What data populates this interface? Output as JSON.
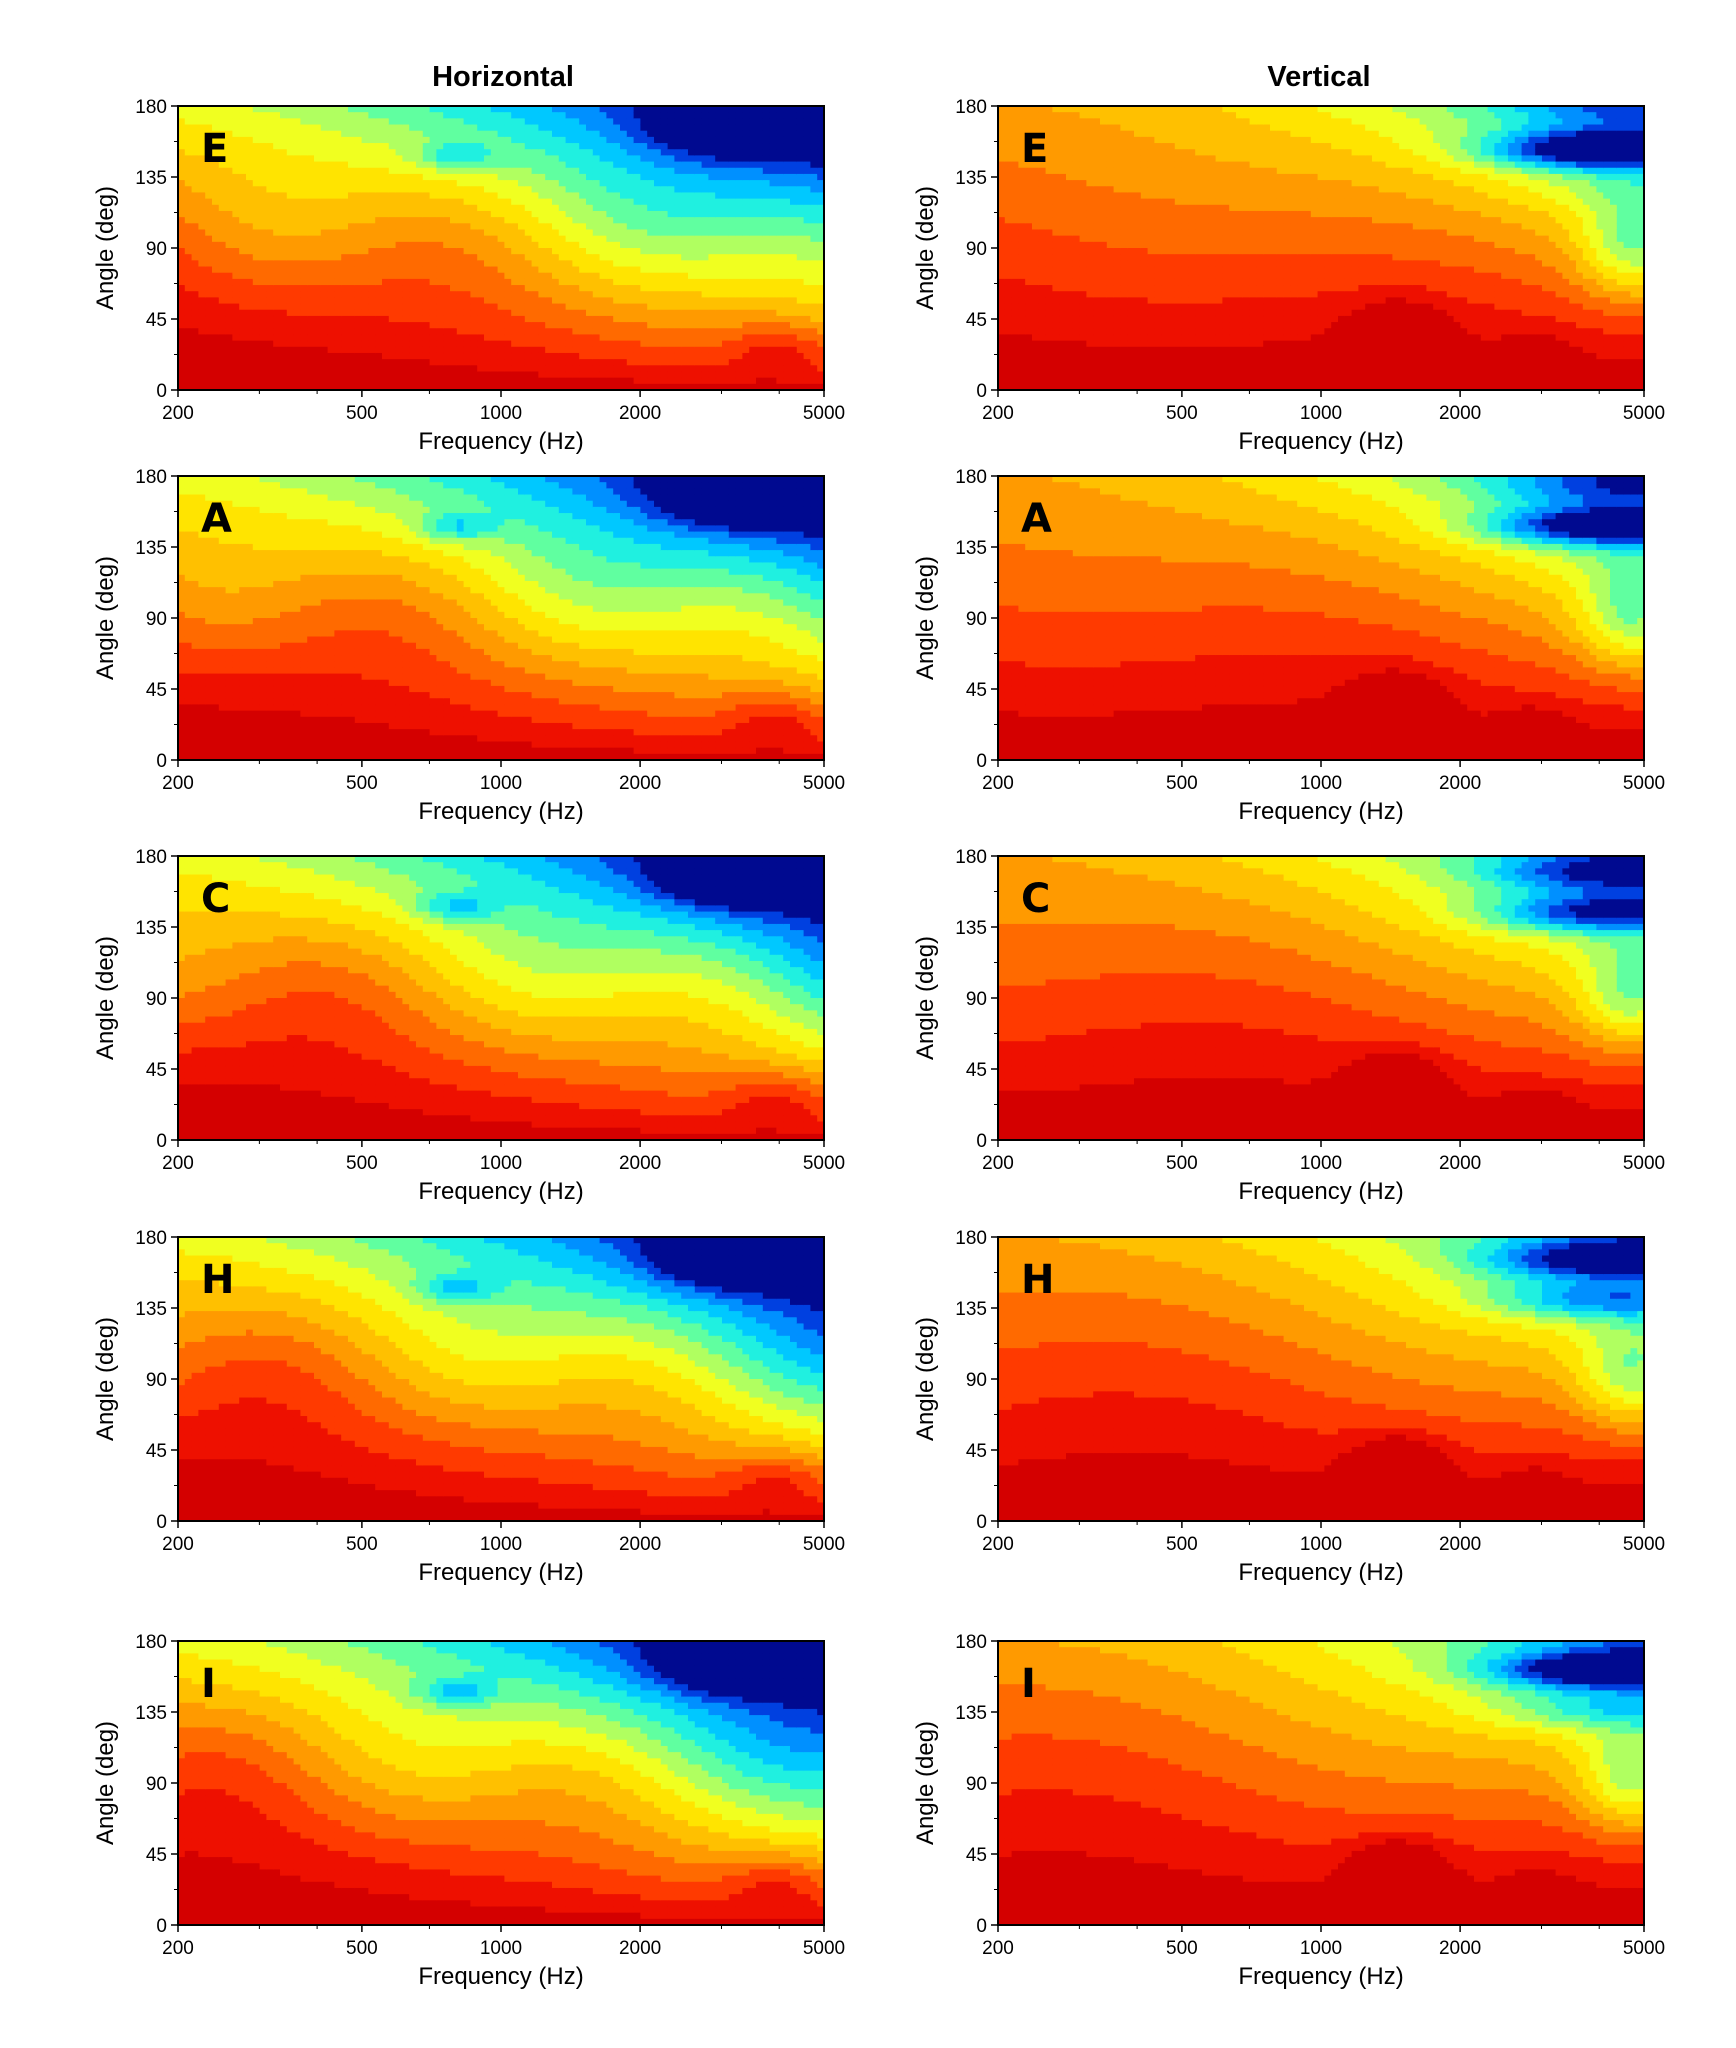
{
  "figure": {
    "column_titles": [
      "Horizontal",
      "Vertical"
    ]
  },
  "colorscale": [
    "#d40000",
    "#ee1000",
    "#ff3a00",
    "#ff6a00",
    "#ff9a00",
    "#ffc000",
    "#ffe400",
    "#f0ff20",
    "#b0ff60",
    "#60ffa0",
    "#20f0e0",
    "#00c8ff",
    "#0090ff",
    "#0040e0",
    "#000a90"
  ],
  "chart_data": [
    {
      "type": "heatmap",
      "panel_label": "E",
      "column": "Horizontal",
      "xlabel": "Frequency (Hz)",
      "ylabel": "Angle (deg)",
      "x_ticks": [
        200,
        500,
        1000,
        2000,
        5000
      ],
      "y_ticks": [
        0,
        45,
        90,
        135,
        180
      ],
      "x_scale": "log",
      "xlim": [
        200,
        5000
      ],
      "ylim": [
        0,
        180
      ]
    },
    {
      "type": "heatmap",
      "panel_label": "E",
      "column": "Vertical",
      "xlabel": "Frequency (Hz)",
      "ylabel": "Angle (deg)",
      "x_ticks": [
        200,
        500,
        1000,
        2000,
        5000
      ],
      "y_ticks": [
        0,
        45,
        90,
        135,
        180
      ],
      "x_scale": "log",
      "xlim": [
        200,
        5000
      ],
      "ylim": [
        0,
        180
      ]
    },
    {
      "type": "heatmap",
      "panel_label": "A",
      "column": "Horizontal",
      "xlabel": "Frequency (Hz)",
      "ylabel": "Angle (deg)",
      "x_ticks": [
        200,
        500,
        1000,
        2000,
        5000
      ],
      "y_ticks": [
        0,
        45,
        90,
        135,
        180
      ],
      "x_scale": "log",
      "xlim": [
        200,
        5000
      ],
      "ylim": [
        0,
        180
      ]
    },
    {
      "type": "heatmap",
      "panel_label": "A",
      "column": "Vertical",
      "xlabel": "Frequency (Hz)",
      "ylabel": "Angle (deg)",
      "x_ticks": [
        200,
        500,
        1000,
        2000,
        5000
      ],
      "y_ticks": [
        0,
        45,
        90,
        135,
        180
      ],
      "x_scale": "log",
      "xlim": [
        200,
        5000
      ],
      "ylim": [
        0,
        180
      ]
    },
    {
      "type": "heatmap",
      "panel_label": "C",
      "column": "Horizontal",
      "xlabel": "Frequency (Hz)",
      "ylabel": "Angle (deg)",
      "x_ticks": [
        200,
        500,
        1000,
        2000,
        5000
      ],
      "y_ticks": [
        0,
        45,
        90,
        135,
        180
      ],
      "x_scale": "log",
      "xlim": [
        200,
        5000
      ],
      "ylim": [
        0,
        180
      ]
    },
    {
      "type": "heatmap",
      "panel_label": "C",
      "column": "Vertical",
      "xlabel": "Frequency (Hz)",
      "ylabel": "Angle (deg)",
      "x_ticks": [
        200,
        500,
        1000,
        2000,
        5000
      ],
      "y_ticks": [
        0,
        45,
        90,
        135,
        180
      ],
      "x_scale": "log",
      "xlim": [
        200,
        5000
      ],
      "ylim": [
        0,
        180
      ]
    },
    {
      "type": "heatmap",
      "panel_label": "H",
      "column": "Horizontal",
      "xlabel": "Frequency (Hz)",
      "ylabel": "Angle (deg)",
      "x_ticks": [
        200,
        500,
        1000,
        2000,
        5000
      ],
      "y_ticks": [
        0,
        45,
        90,
        135,
        180
      ],
      "x_scale": "log",
      "xlim": [
        200,
        5000
      ],
      "ylim": [
        0,
        180
      ]
    },
    {
      "type": "heatmap",
      "panel_label": "H",
      "column": "Vertical",
      "xlabel": "Frequency (Hz)",
      "ylabel": "Angle (deg)",
      "x_ticks": [
        200,
        500,
        1000,
        2000,
        5000
      ],
      "y_ticks": [
        0,
        45,
        90,
        135,
        180
      ],
      "x_scale": "log",
      "xlim": [
        200,
        5000
      ],
      "ylim": [
        0,
        180
      ]
    },
    {
      "type": "heatmap",
      "panel_label": "I",
      "column": "Horizontal",
      "xlabel": "Frequency (Hz)",
      "ylabel": "Angle (deg)",
      "x_ticks": [
        200,
        500,
        1000,
        2000,
        5000
      ],
      "y_ticks": [
        0,
        45,
        90,
        135,
        180
      ],
      "x_scale": "log",
      "xlim": [
        200,
        5000
      ],
      "ylim": [
        0,
        180
      ]
    },
    {
      "type": "heatmap",
      "panel_label": "I",
      "column": "Vertical",
      "xlabel": "Frequency (Hz)",
      "ylabel": "Angle (deg)",
      "x_ticks": [
        200,
        500,
        1000,
        2000,
        5000
      ],
      "y_ticks": [
        0,
        45,
        90,
        135,
        180
      ],
      "x_scale": "log",
      "xlim": [
        200,
        5000
      ],
      "ylim": [
        0,
        180
      ]
    }
  ]
}
